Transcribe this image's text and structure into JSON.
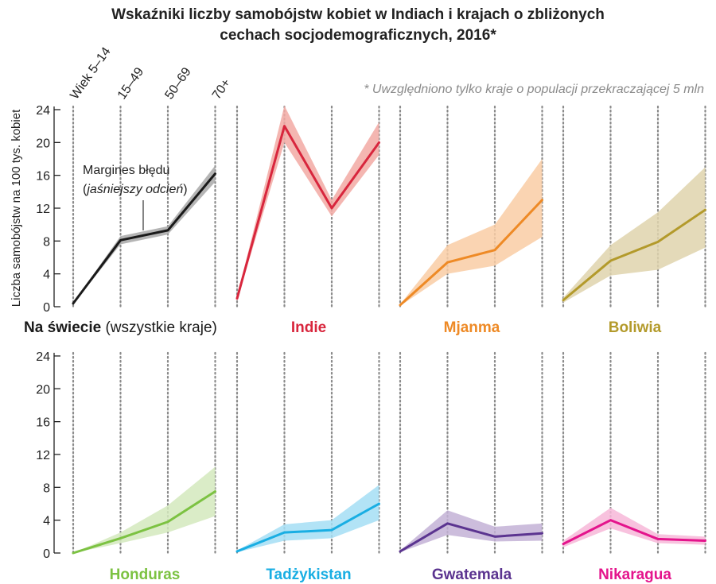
{
  "title": {
    "line1": "Wskaźniki liczby samobójstw kobiet w Indiach i krajach o zbliżonych",
    "line2": "cechach socjodemograficznych, 2016*"
  },
  "footnote": "* Uwzględniono tylko kraje o populacji przekraczającej 5 mln",
  "annotation": {
    "line1": "Margines błędu",
    "open_paren": "(",
    "italic": "jaśniejszy odcień",
    "close_paren": ")"
  },
  "chart_data": {
    "type": "line",
    "ylabel": "Liczba samobójstw na 100 tys. kobiet",
    "ylim": [
      0,
      24
    ],
    "yticks": [
      "0",
      "4",
      "8",
      "12",
      "16",
      "20",
      "24"
    ],
    "age_groups": [
      "Wiek 5–14",
      "15–49",
      "50–69",
      "70+"
    ],
    "panels": [
      {
        "name": "Na świecie",
        "name_suffix": " (wszystkie kraje)",
        "color": "#1a1a1a",
        "band_color": "#a8a8a8",
        "row": 0,
        "col": 0,
        "values": [
          0.4,
          8.1,
          9.3,
          16.2
        ],
        "lower": [
          0.3,
          7.6,
          8.8,
          15.2
        ],
        "upper": [
          0.5,
          8.6,
          9.8,
          17.2
        ]
      },
      {
        "name": "Indie",
        "name_suffix": "",
        "color": "#d8263d",
        "band_color": "#f2a9a3",
        "row": 0,
        "col": 1,
        "values": [
          1.0,
          22.0,
          12.0,
          20.0
        ],
        "lower": [
          0.8,
          20.0,
          11.0,
          18.5
        ],
        "upper": [
          1.2,
          24.5,
          13.0,
          22.5
        ]
      },
      {
        "name": "Mjanma",
        "name_suffix": "",
        "color": "#ee8a26",
        "band_color": "#f9cda4",
        "row": 0,
        "col": 2,
        "values": [
          0.2,
          5.4,
          6.9,
          13.0
        ],
        "lower": [
          0.1,
          4.0,
          5.0,
          8.5
        ],
        "upper": [
          0.3,
          7.5,
          10.0,
          18.0
        ]
      },
      {
        "name": "Boliwia",
        "name_suffix": "",
        "color": "#b39a2b",
        "band_color": "#dfd3ad",
        "row": 0,
        "col": 3,
        "values": [
          0.8,
          5.6,
          7.9,
          11.8
        ],
        "lower": [
          0.5,
          3.8,
          4.5,
          7.2
        ],
        "upper": [
          1.1,
          7.5,
          11.5,
          17.0
        ]
      },
      {
        "name": "Honduras",
        "name_suffix": "",
        "color": "#7cc242",
        "band_color": "#d3e9bd",
        "row": 1,
        "col": 0,
        "values": [
          0.0,
          1.8,
          3.8,
          7.5
        ],
        "lower": [
          0.0,
          1.2,
          2.5,
          4.5
        ],
        "upper": [
          0.0,
          2.5,
          5.8,
          10.5
        ]
      },
      {
        "name": "Tadżykistan",
        "name_suffix": "",
        "color": "#19aee3",
        "band_color": "#a4def5",
        "row": 1,
        "col": 1,
        "values": [
          0.2,
          2.5,
          2.8,
          6.0
        ],
        "lower": [
          0.1,
          1.5,
          1.8,
          4.0
        ],
        "upper": [
          0.3,
          3.5,
          4.0,
          8.3
        ]
      },
      {
        "name": "Gwatemala",
        "name_suffix": "",
        "color": "#5b3490",
        "band_color": "#c3b1d6",
        "row": 1,
        "col": 2,
        "values": [
          0.2,
          3.6,
          2.0,
          2.4
        ],
        "lower": [
          0.1,
          2.2,
          1.4,
          1.5
        ],
        "upper": [
          0.3,
          5.2,
          3.2,
          3.6
        ]
      },
      {
        "name": "Nikaragua",
        "name_suffix": "",
        "color": "#e4148c",
        "band_color": "#f7b7d8",
        "row": 1,
        "col": 3,
        "values": [
          1.1,
          4.0,
          1.7,
          1.5
        ],
        "lower": [
          0.7,
          3.0,
          1.2,
          1.0
        ],
        "upper": [
          1.5,
          5.5,
          2.3,
          2.0
        ]
      }
    ]
  }
}
